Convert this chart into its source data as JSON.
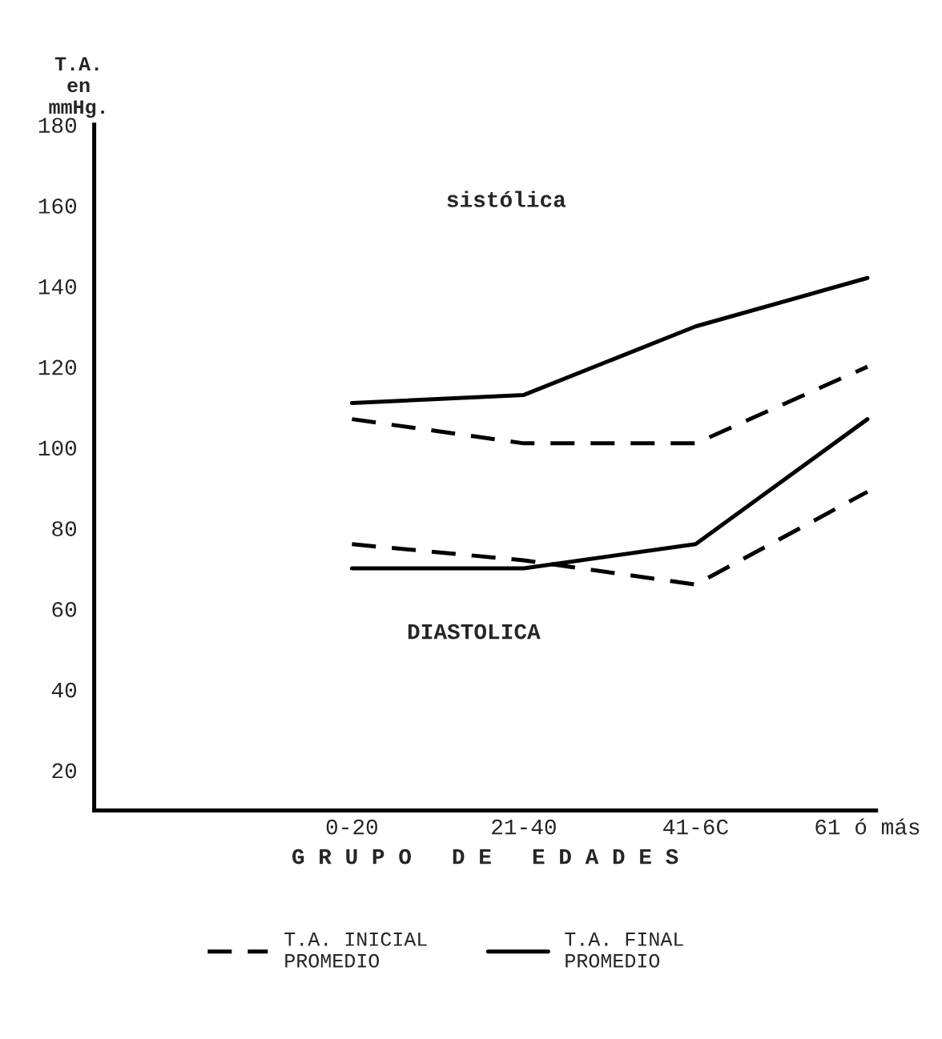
{
  "chart_data": {
    "type": "line",
    "categories": [
      "0-20",
      "21-40",
      "41-6C",
      "61 ó más"
    ],
    "series": [
      {
        "name": "T.A. INICIAL\nPROMEDIO",
        "color": "#000000",
        "line_style": "dashed",
        "values": [
          107,
          101,
          101,
          120
        ]
      },
      {
        "name": "T.A. FINAL\nPROMEDIO",
        "color": "#000000",
        "line_style": "solid",
        "values": [
          111,
          113,
          130,
          142
        ]
      },
      {
        "color": "#000000",
        "line_style": "dashed",
        "values": [
          76,
          72,
          66,
          89
        ]
      },
      {
        "color": "#000000",
        "line_style": "solid",
        "values": [
          70,
          70,
          76,
          107
        ]
      }
    ],
    "ylabel": "T.A.\nen\nmmHg.",
    "xlabel": "G R U P O   D E   E D A D E S",
    "ylim": [
      10,
      180
    ],
    "yticks": [
      20,
      40,
      60,
      80,
      100,
      120,
      140,
      160,
      180
    ],
    "annotations": [
      "sistólica",
      "DIASTOLICA"
    ],
    "grid": false,
    "legend": "bottom",
    "marker": "none"
  }
}
